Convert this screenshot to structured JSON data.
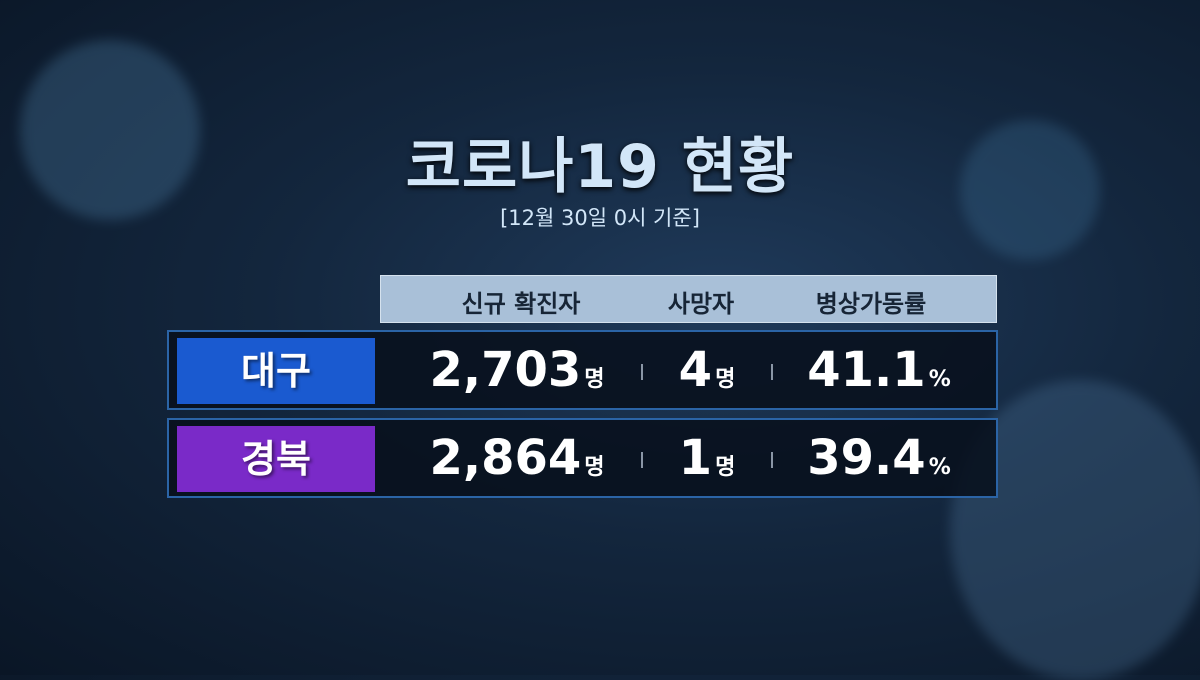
{
  "title": "코로나19 현황",
  "subtitle": "[12월 30일 0시 기준]",
  "columns": [
    "신규 확진자",
    "사망자",
    "병상가동률"
  ],
  "rows": [
    {
      "region": "대구",
      "color": "#1a5ad0",
      "new_cases": "2,703",
      "deaths": "4",
      "bed_rate": "41.1"
    },
    {
      "region": "경북",
      "color": "#7a2ac8",
      "new_cases": "2,864",
      "deaths": "1",
      "bed_rate": "39.4"
    }
  ],
  "units": {
    "person": "명",
    "percent": "%"
  }
}
